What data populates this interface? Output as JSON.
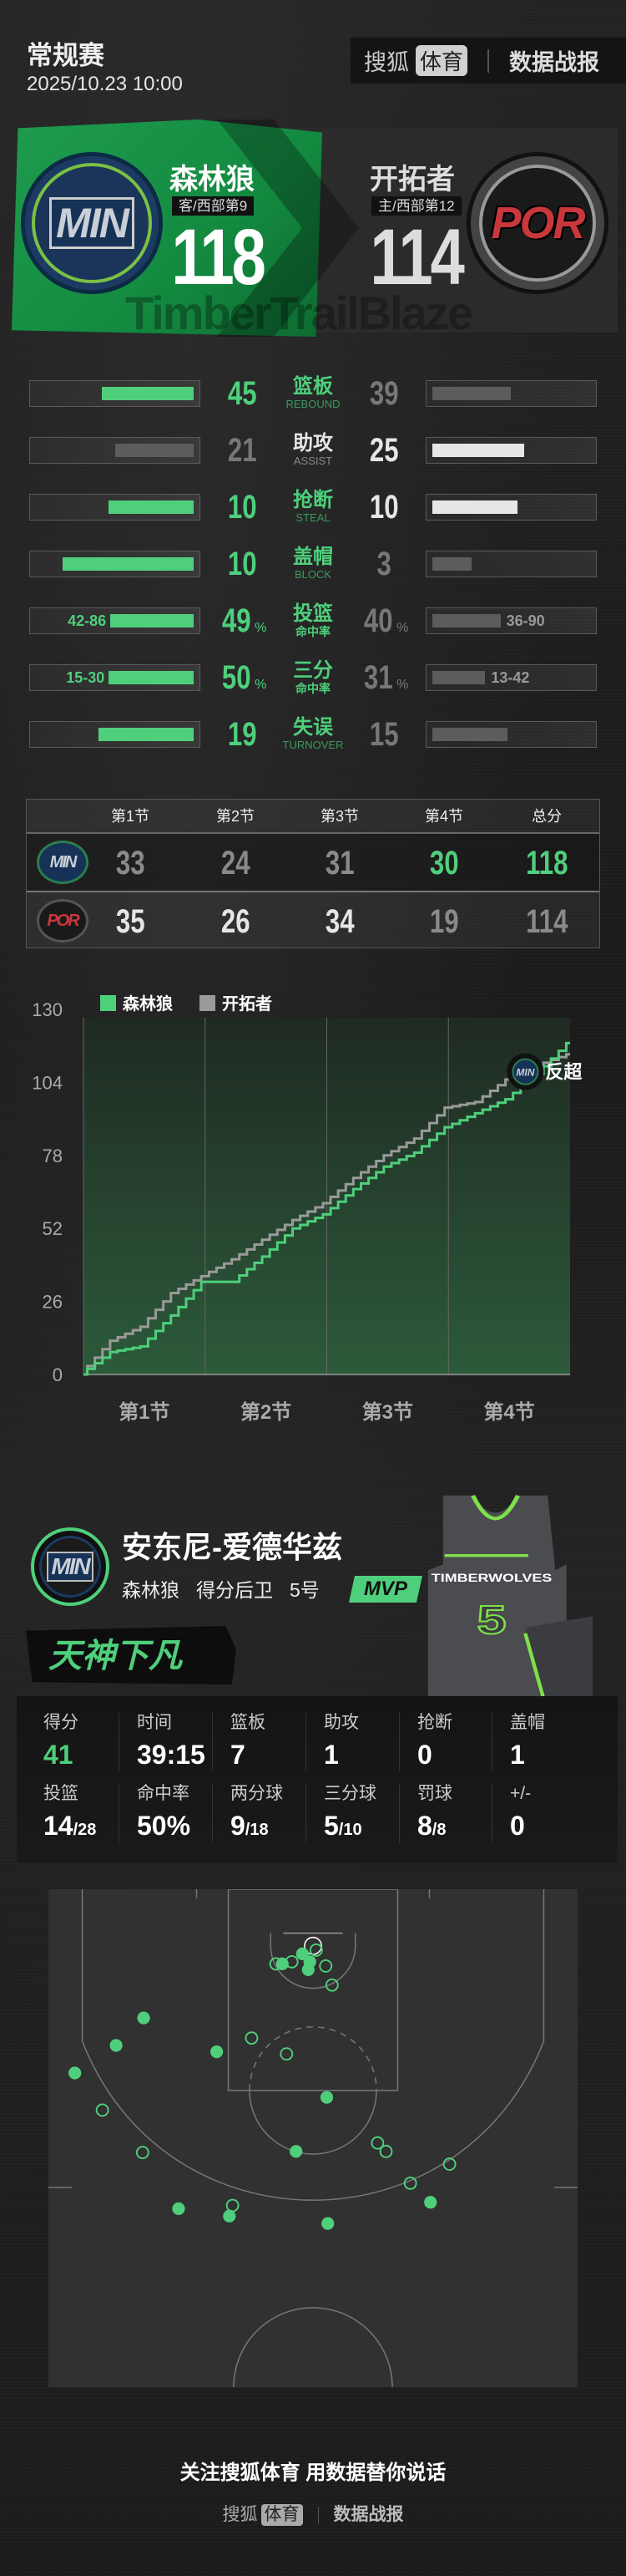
{
  "header": {
    "title": "常规赛",
    "datetime": "2025/10.23 10:00",
    "brand": {
      "sohu": "搜狐",
      "sports": "体育",
      "report": "数据战报"
    }
  },
  "teams": {
    "away": {
      "name": "森林狼",
      "abbr": "MIN",
      "tag": "客/西部第9",
      "score": "118",
      "color": "#4fcf7c"
    },
    "home": {
      "name": "开拓者",
      "abbr": "POR",
      "tag": "主/西部第12",
      "score": "114",
      "color": "#c8373c"
    }
  },
  "watermark": "TimberTrailBlaze",
  "team_stats": [
    {
      "label": "篮板",
      "label_en": "REBOUND",
      "away": "45",
      "home": "39",
      "away_fill": 57.5,
      "home_fill": 49,
      "away_lead": true,
      "home_lead": false
    },
    {
      "label": "助攻",
      "label_en": "ASSIST",
      "away": "21",
      "home": "25",
      "away_fill": 49,
      "home_fill": 57.5,
      "away_lead": false,
      "home_lead": true
    },
    {
      "label": "抢断",
      "label_en": "STEAL",
      "away": "10",
      "home": "10",
      "away_fill": 53,
      "home_fill": 53,
      "away_lead": true,
      "home_lead": true
    },
    {
      "label": "盖帽",
      "label_en": "BLOCK",
      "away": "10",
      "home": "3",
      "away_fill": 82,
      "home_fill": 24.5,
      "away_lead": true,
      "home_lead": false
    },
    {
      "label": "投篮",
      "label_sub": "命中率",
      "away": "49",
      "home": "40",
      "unit": "%",
      "away_detail": "42-86",
      "home_detail": "36-90",
      "away_fill": 52,
      "home_fill": 42.5,
      "away_lead": true,
      "home_lead": false
    },
    {
      "label": "三分",
      "label_sub": "命中率",
      "away": "50",
      "home": "31",
      "unit": "%",
      "away_detail": "15-30",
      "home_detail": "13-42",
      "away_fill": 53,
      "home_fill": 33,
      "away_lead": true,
      "home_lead": false
    },
    {
      "label": "失误",
      "label_en": "TURNOVER",
      "away": "19",
      "home": "15",
      "away_fill": 59.5,
      "home_fill": 47,
      "away_lead": true,
      "home_lead": false
    }
  ],
  "quarters": {
    "headers": [
      "第1节",
      "第2节",
      "第3节",
      "第4节",
      "总分"
    ],
    "rows": [
      {
        "abbr": "MIN",
        "values": [
          "33",
          "24",
          "31",
          "30",
          "118"
        ],
        "highlight": [
          false,
          false,
          false,
          true,
          true
        ]
      },
      {
        "abbr": "POR",
        "values": [
          "35",
          "26",
          "34",
          "19",
          "114"
        ],
        "highlight": [
          true,
          true,
          true,
          false,
          false
        ]
      }
    ]
  },
  "chart_data": {
    "type": "line",
    "step": true,
    "x_categories": [
      "第1节",
      "第2节",
      "第3节",
      "第4节"
    ],
    "x_unit_range": [
      0,
      48
    ],
    "ylim": [
      0,
      130
    ],
    "yticks": [
      0,
      26,
      52,
      78,
      104,
      130
    ],
    "legend": "top-left",
    "grid": "vertical quarter lines",
    "series": [
      {
        "name": "森林狼",
        "color": "#4fcf7c",
        "points": [
          [
            0,
            0
          ],
          [
            3,
            8
          ],
          [
            6,
            10
          ],
          [
            9,
            21
          ],
          [
            12,
            33
          ],
          [
            15,
            33
          ],
          [
            18,
            42
          ],
          [
            21,
            52
          ],
          [
            24,
            57
          ],
          [
            27,
            66
          ],
          [
            30,
            74
          ],
          [
            33,
            79
          ],
          [
            36,
            88
          ],
          [
            39,
            93
          ],
          [
            42,
            98
          ],
          [
            45,
            107
          ],
          [
            48,
            118
          ]
        ]
      },
      {
        "name": "开拓者",
        "color": "#9a9a9a",
        "points": [
          [
            0,
            0
          ],
          [
            3,
            12
          ],
          [
            6,
            17
          ],
          [
            9,
            29
          ],
          [
            12,
            35
          ],
          [
            15,
            41
          ],
          [
            18,
            48
          ],
          [
            21,
            55
          ],
          [
            24,
            61
          ],
          [
            27,
            70
          ],
          [
            30,
            78
          ],
          [
            33,
            84
          ],
          [
            36,
            95
          ],
          [
            39,
            97
          ],
          [
            42,
            105
          ],
          [
            45,
            110
          ],
          [
            48,
            114
          ]
        ]
      }
    ],
    "annotation": {
      "team": "MIN",
      "text": "反超",
      "minute": 44,
      "score": 106
    }
  },
  "player": {
    "name": "安东尼-爱德华兹",
    "team": "森林狼",
    "position": "得分后卫",
    "number": "5号",
    "badge": "MVP",
    "slogan": "天神下凡",
    "team_abbr": "MIN",
    "jersey_text": "TIMBERWOLVES",
    "jersey_number": "5",
    "stats": [
      [
        {
          "label": "得分",
          "value": "41",
          "green": true
        },
        {
          "label": "时间",
          "value": "39:15"
        },
        {
          "label": "篮板",
          "value": "7"
        },
        {
          "label": "助攻",
          "value": "1"
        },
        {
          "label": "抢断",
          "value": "0"
        },
        {
          "label": "盖帽",
          "value": "1"
        }
      ],
      [
        {
          "label": "投篮",
          "value": "14",
          "sub": "/28"
        },
        {
          "label": "命中率",
          "value": "50%"
        },
        {
          "label": "两分球",
          "value": "9",
          "sub": "/18"
        },
        {
          "label": "三分球",
          "value": "5",
          "sub": "/10"
        },
        {
          "label": "罚球",
          "value": "8",
          "sub": "/8"
        },
        {
          "label": "+/-",
          "value": "0"
        }
      ]
    ]
  },
  "shot_chart": {
    "units": "feet from basket",
    "made": [
      [
        -1,
        0.75
      ],
      [
        -2.9,
        1.7
      ],
      [
        -0.3,
        1.5
      ],
      [
        -0.45,
        2.25
      ],
      [
        -16,
        6.8
      ],
      [
        -18.6,
        9.4
      ],
      [
        -22.5,
        12
      ],
      [
        -9.1,
        10
      ],
      [
        1.3,
        14.3
      ],
      [
        -1.6,
        19.4
      ],
      [
        -12.7,
        24.8
      ],
      [
        -7.9,
        25.5
      ],
      [
        1.4,
        26.2
      ],
      [
        11.1,
        24.2
      ]
    ],
    "missed": [
      [
        0.3,
        0.4
      ],
      [
        -2,
        1.5
      ],
      [
        -3.5,
        1.7
      ],
      [
        1.2,
        1.9
      ],
      [
        1.8,
        3.7
      ],
      [
        -5.8,
        8.7
      ],
      [
        -2.5,
        10.2
      ],
      [
        -19.9,
        15.5
      ],
      [
        -16.1,
        19.5
      ],
      [
        6.1,
        18.6
      ],
      [
        6.9,
        19.4
      ],
      [
        12.9,
        20.6
      ],
      [
        9.2,
        22.4
      ],
      [
        -7.6,
        24.5
      ]
    ]
  },
  "footer": {
    "slogan": "关注搜狐体育 用数据替你说话",
    "brand": {
      "sohu": "搜狐",
      "sports": "体育",
      "report": "数据战报"
    }
  }
}
